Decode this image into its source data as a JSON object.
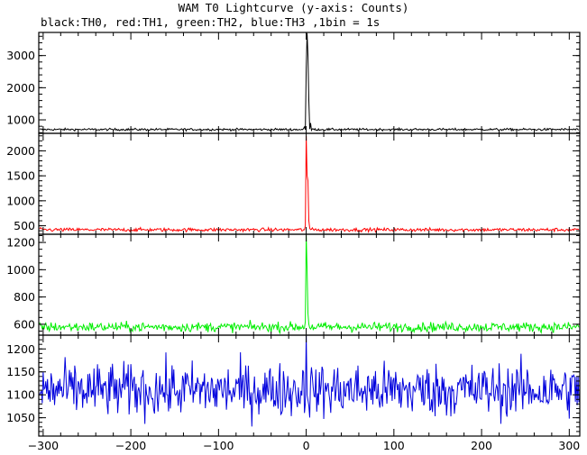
{
  "chart_data": {
    "type": "line",
    "title": "WAM T0 Lightcurve (y-axis: Counts)",
    "subtitle": "black:TH0, red:TH1, green:TH2, blue:TH3 ,1bin = 1s",
    "xlim": [
      -305,
      312
    ],
    "x_ticks": [
      -300,
      -200,
      -100,
      0,
      100,
      200,
      300
    ],
    "x_tick_labels": [
      "−300",
      "−200",
      "−100",
      "0",
      "100",
      "200",
      "300"
    ],
    "x_minor_step": 20,
    "bin_seconds": 1,
    "legend_placement": "subtitle",
    "grid": false,
    "panels": [
      {
        "series": "TH0",
        "color": "#000000",
        "ylim": [
          580,
          3720
        ],
        "y_ticks": [
          1000,
          2000,
          3000
        ],
        "y_minor_step": 200,
        "baseline": 700,
        "noise": 25,
        "burst": [
          {
            "x": -2,
            "y": 780
          },
          {
            "x": 0,
            "y": 2600
          },
          {
            "x": 1,
            "y": 3700
          },
          {
            "x": 2,
            "y": 3000
          },
          {
            "x": 3,
            "y": 1600
          },
          {
            "x": 5,
            "y": 900
          },
          {
            "x": 8,
            "y": 720
          }
        ]
      },
      {
        "series": "TH1",
        "color": "#ff0000",
        "ylim": [
          330,
          2350
        ],
        "y_ticks": [
          500,
          1000,
          1500,
          2000
        ],
        "y_minor_step": 100,
        "baseline": 420,
        "noise": 25,
        "burst": [
          {
            "x": -1,
            "y": 500
          },
          {
            "x": 0,
            "y": 2300
          },
          {
            "x": 1,
            "y": 1500
          },
          {
            "x": 2,
            "y": 1400
          },
          {
            "x": 3,
            "y": 600
          },
          {
            "x": 4,
            "y": 450
          }
        ]
      },
      {
        "series": "TH2",
        "color": "#00ee00",
        "ylim": [
          520,
          1260
        ],
        "y_ticks": [
          600,
          800,
          1000,
          1200
        ],
        "y_minor_step": 50,
        "baseline": 580,
        "noise": 25,
        "burst": [
          {
            "x": -1,
            "y": 620
          },
          {
            "x": 0,
            "y": 1250
          },
          {
            "x": 1,
            "y": 1000
          },
          {
            "x": 2,
            "y": 680
          },
          {
            "x": 3,
            "y": 600
          }
        ]
      },
      {
        "series": "TH3",
        "color": "#0000dd",
        "ylim": [
          1010,
          1230
        ],
        "y_ticks": [
          1050,
          1100,
          1150,
          1200
        ],
        "y_minor_step": 10,
        "baseline": 1110,
        "noise": 42,
        "burst": [
          {
            "x": 0,
            "y": 1230
          }
        ]
      }
    ]
  }
}
